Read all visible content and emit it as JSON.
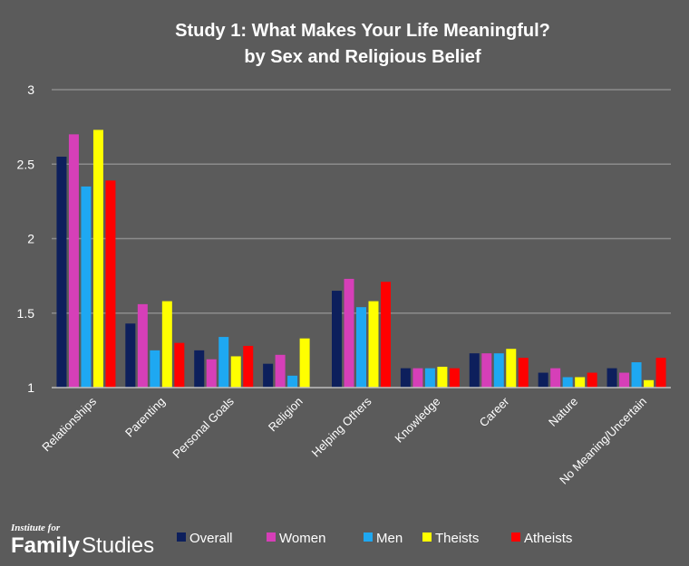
{
  "logo": {
    "small_text": "Institute for",
    "word_bold": "Family",
    "word_regular": "Studies"
  },
  "chart_data": {
    "type": "bar",
    "title": "Study 1: What Makes Your Life Meaningful?",
    "subtitle": "by Sex and Religious Belief",
    "xlabel": "",
    "ylabel": "",
    "ylim": [
      1,
      3
    ],
    "yticks": [
      "3",
      "2.5",
      "2",
      "1.5",
      "1"
    ],
    "grid": true,
    "legend_position": "bottom",
    "categories": [
      "Relationships",
      "Parenting",
      "Personal Goals",
      "Religion",
      "Helping Others",
      "Knowledge",
      "Career",
      "Nature",
      "No Meaning/Uncertain"
    ],
    "series": [
      {
        "name": "Overall",
        "color": "#0d1f5c",
        "values": [
          2.55,
          1.43,
          1.25,
          1.16,
          1.65,
          1.13,
          1.23,
          1.1,
          1.13
        ]
      },
      {
        "name": "Women",
        "color": "#d63fb8",
        "values": [
          2.7,
          1.56,
          1.19,
          1.22,
          1.73,
          1.13,
          1.23,
          1.13,
          1.1
        ]
      },
      {
        "name": "Men",
        "color": "#1ea8f2",
        "values": [
          2.35,
          1.25,
          1.34,
          1.08,
          1.54,
          1.13,
          1.23,
          1.07,
          1.17
        ]
      },
      {
        "name": "Theists",
        "color": "#ffff00",
        "values": [
          2.73,
          1.58,
          1.21,
          1.33,
          1.58,
          1.14,
          1.26,
          1.07,
          1.05
        ]
      },
      {
        "name": "Atheists",
        "color": "#ff0000",
        "values": [
          2.39,
          1.3,
          1.28,
          null,
          1.71,
          1.13,
          1.2,
          1.1,
          1.2
        ]
      }
    ]
  }
}
